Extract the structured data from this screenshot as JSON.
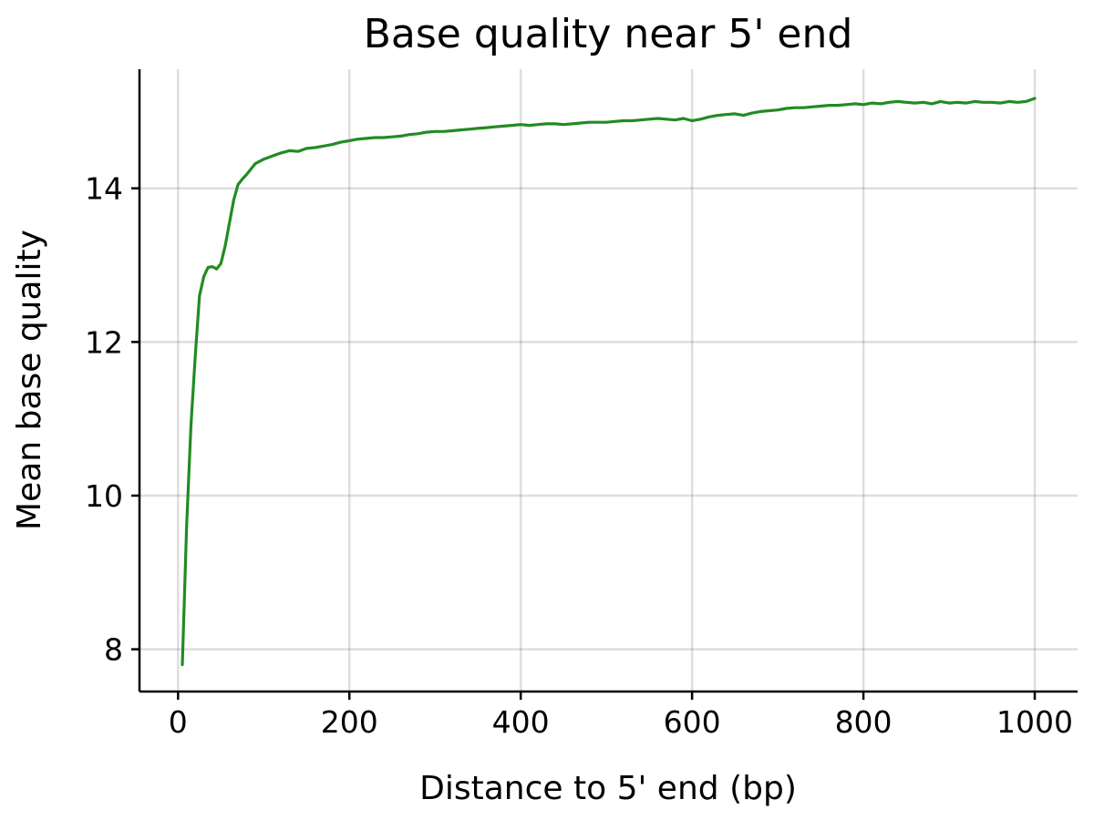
{
  "chart_data": {
    "type": "line",
    "title": "Base quality near 5' end",
    "xlabel": "Distance to 5' end (bp)",
    "ylabel": "Mean base quality",
    "xlim": [
      -45,
      1050
    ],
    "ylim": [
      7.45,
      15.55
    ],
    "xticks": [
      0,
      200,
      400,
      600,
      800,
      1000
    ],
    "yticks": [
      8,
      10,
      12,
      14
    ],
    "grid": true,
    "series": [
      {
        "color": "#228B22",
        "x": [
          5,
          10,
          15,
          20,
          25,
          30,
          35,
          40,
          45,
          50,
          55,
          60,
          65,
          70,
          75,
          80,
          90,
          100,
          110,
          120,
          130,
          140,
          150,
          160,
          170,
          180,
          190,
          200,
          210,
          220,
          230,
          240,
          250,
          260,
          270,
          280,
          290,
          300,
          310,
          320,
          330,
          340,
          350,
          360,
          370,
          380,
          390,
          400,
          410,
          420,
          430,
          440,
          450,
          460,
          470,
          480,
          490,
          500,
          510,
          520,
          530,
          540,
          550,
          560,
          570,
          580,
          590,
          600,
          610,
          620,
          630,
          640,
          650,
          660,
          670,
          680,
          690,
          700,
          710,
          720,
          730,
          740,
          750,
          760,
          770,
          780,
          790,
          800,
          810,
          820,
          830,
          840,
          850,
          860,
          870,
          880,
          890,
          900,
          910,
          920,
          930,
          940,
          950,
          960,
          970,
          980,
          990,
          1000
        ],
        "y": [
          7.8,
          9.6,
          10.9,
          11.8,
          12.6,
          12.85,
          12.97,
          12.98,
          12.95,
          13.02,
          13.25,
          13.55,
          13.85,
          14.05,
          14.12,
          14.18,
          14.32,
          14.38,
          14.42,
          14.46,
          14.49,
          14.48,
          14.52,
          14.53,
          14.55,
          14.57,
          14.6,
          14.62,
          14.64,
          14.65,
          14.66,
          14.66,
          14.67,
          14.68,
          14.7,
          14.71,
          14.73,
          14.74,
          14.74,
          14.75,
          14.76,
          14.77,
          14.78,
          14.79,
          14.8,
          14.81,
          14.82,
          14.83,
          14.82,
          14.83,
          14.84,
          14.84,
          14.83,
          14.84,
          14.85,
          14.86,
          14.86,
          14.86,
          14.87,
          14.88,
          14.88,
          14.89,
          14.9,
          14.91,
          14.9,
          14.89,
          14.91,
          14.88,
          14.9,
          14.93,
          14.95,
          14.96,
          14.97,
          14.95,
          14.98,
          15.0,
          15.01,
          15.02,
          15.04,
          15.05,
          15.05,
          15.06,
          15.07,
          15.08,
          15.08,
          15.09,
          15.1,
          15.09,
          15.11,
          15.1,
          15.12,
          15.13,
          15.12,
          15.11,
          15.12,
          15.1,
          15.13,
          15.11,
          15.12,
          15.11,
          15.13,
          15.12,
          15.12,
          15.11,
          15.13,
          15.12,
          15.13,
          15.17
        ]
      }
    ]
  }
}
